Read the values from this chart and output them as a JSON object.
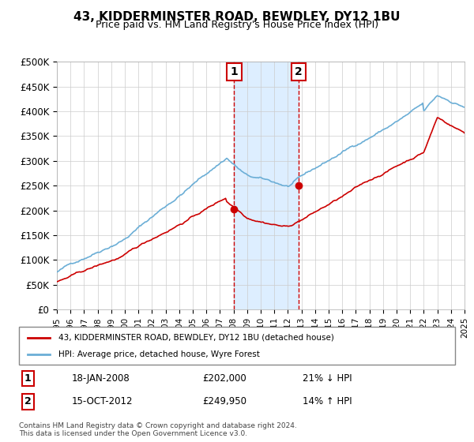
{
  "title": "43, KIDDERMINSTER ROAD, BEWDLEY, DY12 1BU",
  "subtitle": "Price paid vs. HM Land Registry's House Price Index (HPI)",
  "legend_line1": "43, KIDDERMINSTER ROAD, BEWDLEY, DY12 1BU (detached house)",
  "legend_line2": "HPI: Average price, detached house, Wyre Forest",
  "footnote": "Contains HM Land Registry data © Crown copyright and database right 2024.\nThis data is licensed under the Open Government Licence v3.0.",
  "transaction1_label": "1",
  "transaction1_date": "18-JAN-2008",
  "transaction1_price": "£202,000",
  "transaction1_hpi": "21% ↓ HPI",
  "transaction2_label": "2",
  "transaction2_date": "15-OCT-2012",
  "transaction2_price": "£249,950",
  "transaction2_hpi": "14% ↑ HPI",
  "ylim": [
    0,
    500000
  ],
  "yticks": [
    0,
    50000,
    100000,
    150000,
    200000,
    250000,
    300000,
    350000,
    400000,
    450000,
    500000
  ],
  "ytick_labels": [
    "£0",
    "£50K",
    "£100K",
    "£150K",
    "£200K",
    "£250K",
    "£300K",
    "£350K",
    "£400K",
    "£450K",
    "£500K"
  ],
  "hpi_color": "#6baed6",
  "price_color": "#cc0000",
  "transaction_color": "#cc0000",
  "shade_color": "#ddeeff",
  "transaction1_x": 2008.05,
  "transaction2_x": 2012.79,
  "xmin": 1995,
  "xmax": 2025
}
